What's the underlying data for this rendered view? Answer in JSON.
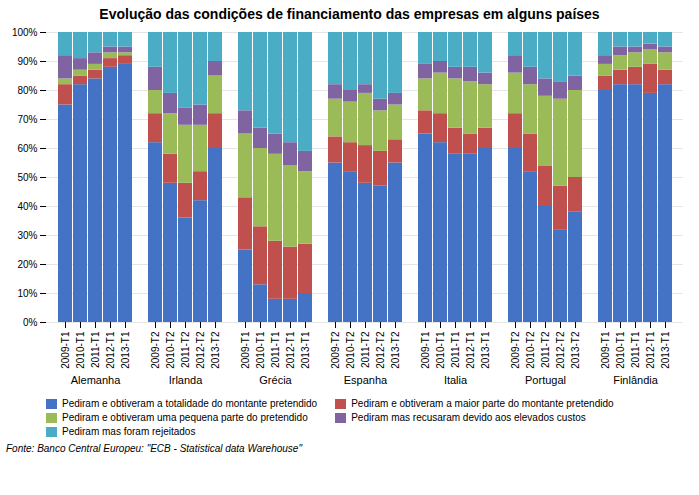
{
  "chart_data": {
    "type": "bar",
    "stacked": true,
    "title": "Evolução das condições de financiamento das empresas em alguns países",
    "caption": "Fonte: Banco Central Europeu: \"ECB - Statistical data Warehouse\"",
    "categories": [
      "2009-T1",
      "2010-T1",
      "2011-T1",
      "2012-T1",
      "2013-T1",
      "2009-T2",
      "2010-T2",
      "2011-T2",
      "2012-T2",
      "2013-T2",
      "2009-T1",
      "2010-T1",
      "2011-T1",
      "2012-T1",
      "2013-T1",
      "2009-T2",
      "2010-T2",
      "2011-T2",
      "2012-T2",
      "2013-T2",
      "2009-T1",
      "2010-T1",
      "2011-T1",
      "2012-T1",
      "2013-T1",
      "2009-T2",
      "2010-T2",
      "2011-T2",
      "2012-T2",
      "2013-T2",
      "2009-T1",
      "2010-T1",
      "2011-T1",
      "2012-T1",
      "2013-T1"
    ],
    "groups": [
      {
        "name": "Alemanha",
        "categories": [
          "2009-T1",
          "2010-T1",
          "2011-T1",
          "2012-T1",
          "2013-T1"
        ]
      },
      {
        "name": "Irlanda",
        "categories": [
          "2009-T2",
          "2010-T2",
          "2011-T2",
          "2012-T2",
          "2013-T2"
        ]
      },
      {
        "name": "Grécia",
        "categories": [
          "2009-T1",
          "2010-T1",
          "2011-T1",
          "2012-T1",
          "2013-T1"
        ]
      },
      {
        "name": "Espanha",
        "categories": [
          "2009-T2",
          "2010-T2",
          "2011-T2",
          "2012-T2",
          "2013-T2"
        ]
      },
      {
        "name": "Italia",
        "categories": [
          "2009-T1",
          "2010-T1",
          "2011-T1",
          "2012-T1",
          "2013-T1"
        ]
      },
      {
        "name": "Portugal",
        "categories": [
          "2009-T2",
          "2010-T2",
          "2011-T2",
          "2012-T2",
          "2013-T2"
        ]
      },
      {
        "name": "Finlândia",
        "categories": [
          "2009-T1",
          "2010-T1",
          "2011-T1",
          "2012-T1",
          "2013-T1"
        ]
      }
    ],
    "series": [
      {
        "name": "Pediram e obtiveram a totalidade do montante pretendido",
        "color": "#4472C4",
        "values": [
          75,
          82,
          84,
          88,
          89,
          62,
          48,
          36,
          42,
          60,
          25,
          13,
          8,
          8,
          10,
          55,
          52,
          48,
          47,
          55,
          65,
          62,
          58,
          58,
          60,
          60,
          52,
          40,
          32,
          38,
          80,
          82,
          82,
          79,
          82
        ]
      },
      {
        "name": "Pediram e obtiveram a maior parte do montante pretendido",
        "color": "#C0504D",
        "values": [
          7,
          3,
          3,
          3,
          3,
          10,
          10,
          12,
          10,
          12,
          18,
          20,
          20,
          18,
          17,
          9,
          10,
          13,
          12,
          8,
          8,
          10,
          9,
          7,
          7,
          12,
          13,
          14,
          15,
          12,
          5,
          5,
          6,
          10,
          5
        ]
      },
      {
        "name": "Pediram e obtiveram uma pequena parte do pretendido",
        "color": "#9BBB59",
        "values": [
          2,
          2,
          2,
          2,
          1,
          8,
          14,
          20,
          16,
          13,
          22,
          27,
          30,
          28,
          25,
          13,
          14,
          18,
          14,
          12,
          11,
          14,
          17,
          18,
          15,
          14,
          17,
          24,
          30,
          30,
          4,
          5,
          5,
          5,
          6
        ]
      },
      {
        "name": "Pediram mas recusaram devido aos elevados custos",
        "color": "#8064A2",
        "values": [
          8,
          4,
          4,
          2,
          2,
          8,
          7,
          6,
          7,
          5,
          8,
          7,
          7,
          8,
          7,
          5,
          4,
          3,
          4,
          4,
          5,
          4,
          4,
          5,
          4,
          6,
          6,
          6,
          6,
          5,
          3,
          3,
          2,
          2,
          2
        ]
      },
      {
        "name": "Pediram mas foram rejeitados",
        "color": "#4BACC6",
        "values": [
          8,
          9,
          7,
          5,
          5,
          12,
          21,
          26,
          25,
          10,
          27,
          33,
          35,
          38,
          41,
          18,
          20,
          18,
          23,
          21,
          11,
          10,
          12,
          12,
          14,
          8,
          12,
          16,
          17,
          15,
          8,
          5,
          5,
          4,
          5
        ]
      }
    ],
    "ylim": [
      0,
      100
    ],
    "yticks": [
      {
        "value": 0,
        "label": "0%"
      },
      {
        "value": 10,
        "label": "10%"
      },
      {
        "value": 20,
        "label": "20%"
      },
      {
        "value": 30,
        "label": "30%"
      },
      {
        "value": 40,
        "label": "40%"
      },
      {
        "value": 50,
        "label": "50%"
      },
      {
        "value": 60,
        "label": "60%"
      },
      {
        "value": 70,
        "label": "70%"
      },
      {
        "value": 80,
        "label": "80%"
      },
      {
        "value": 90,
        "label": "90%"
      },
      {
        "value": 100,
        "label": "100%"
      }
    ],
    "grid": true,
    "legend": "bottom"
  }
}
